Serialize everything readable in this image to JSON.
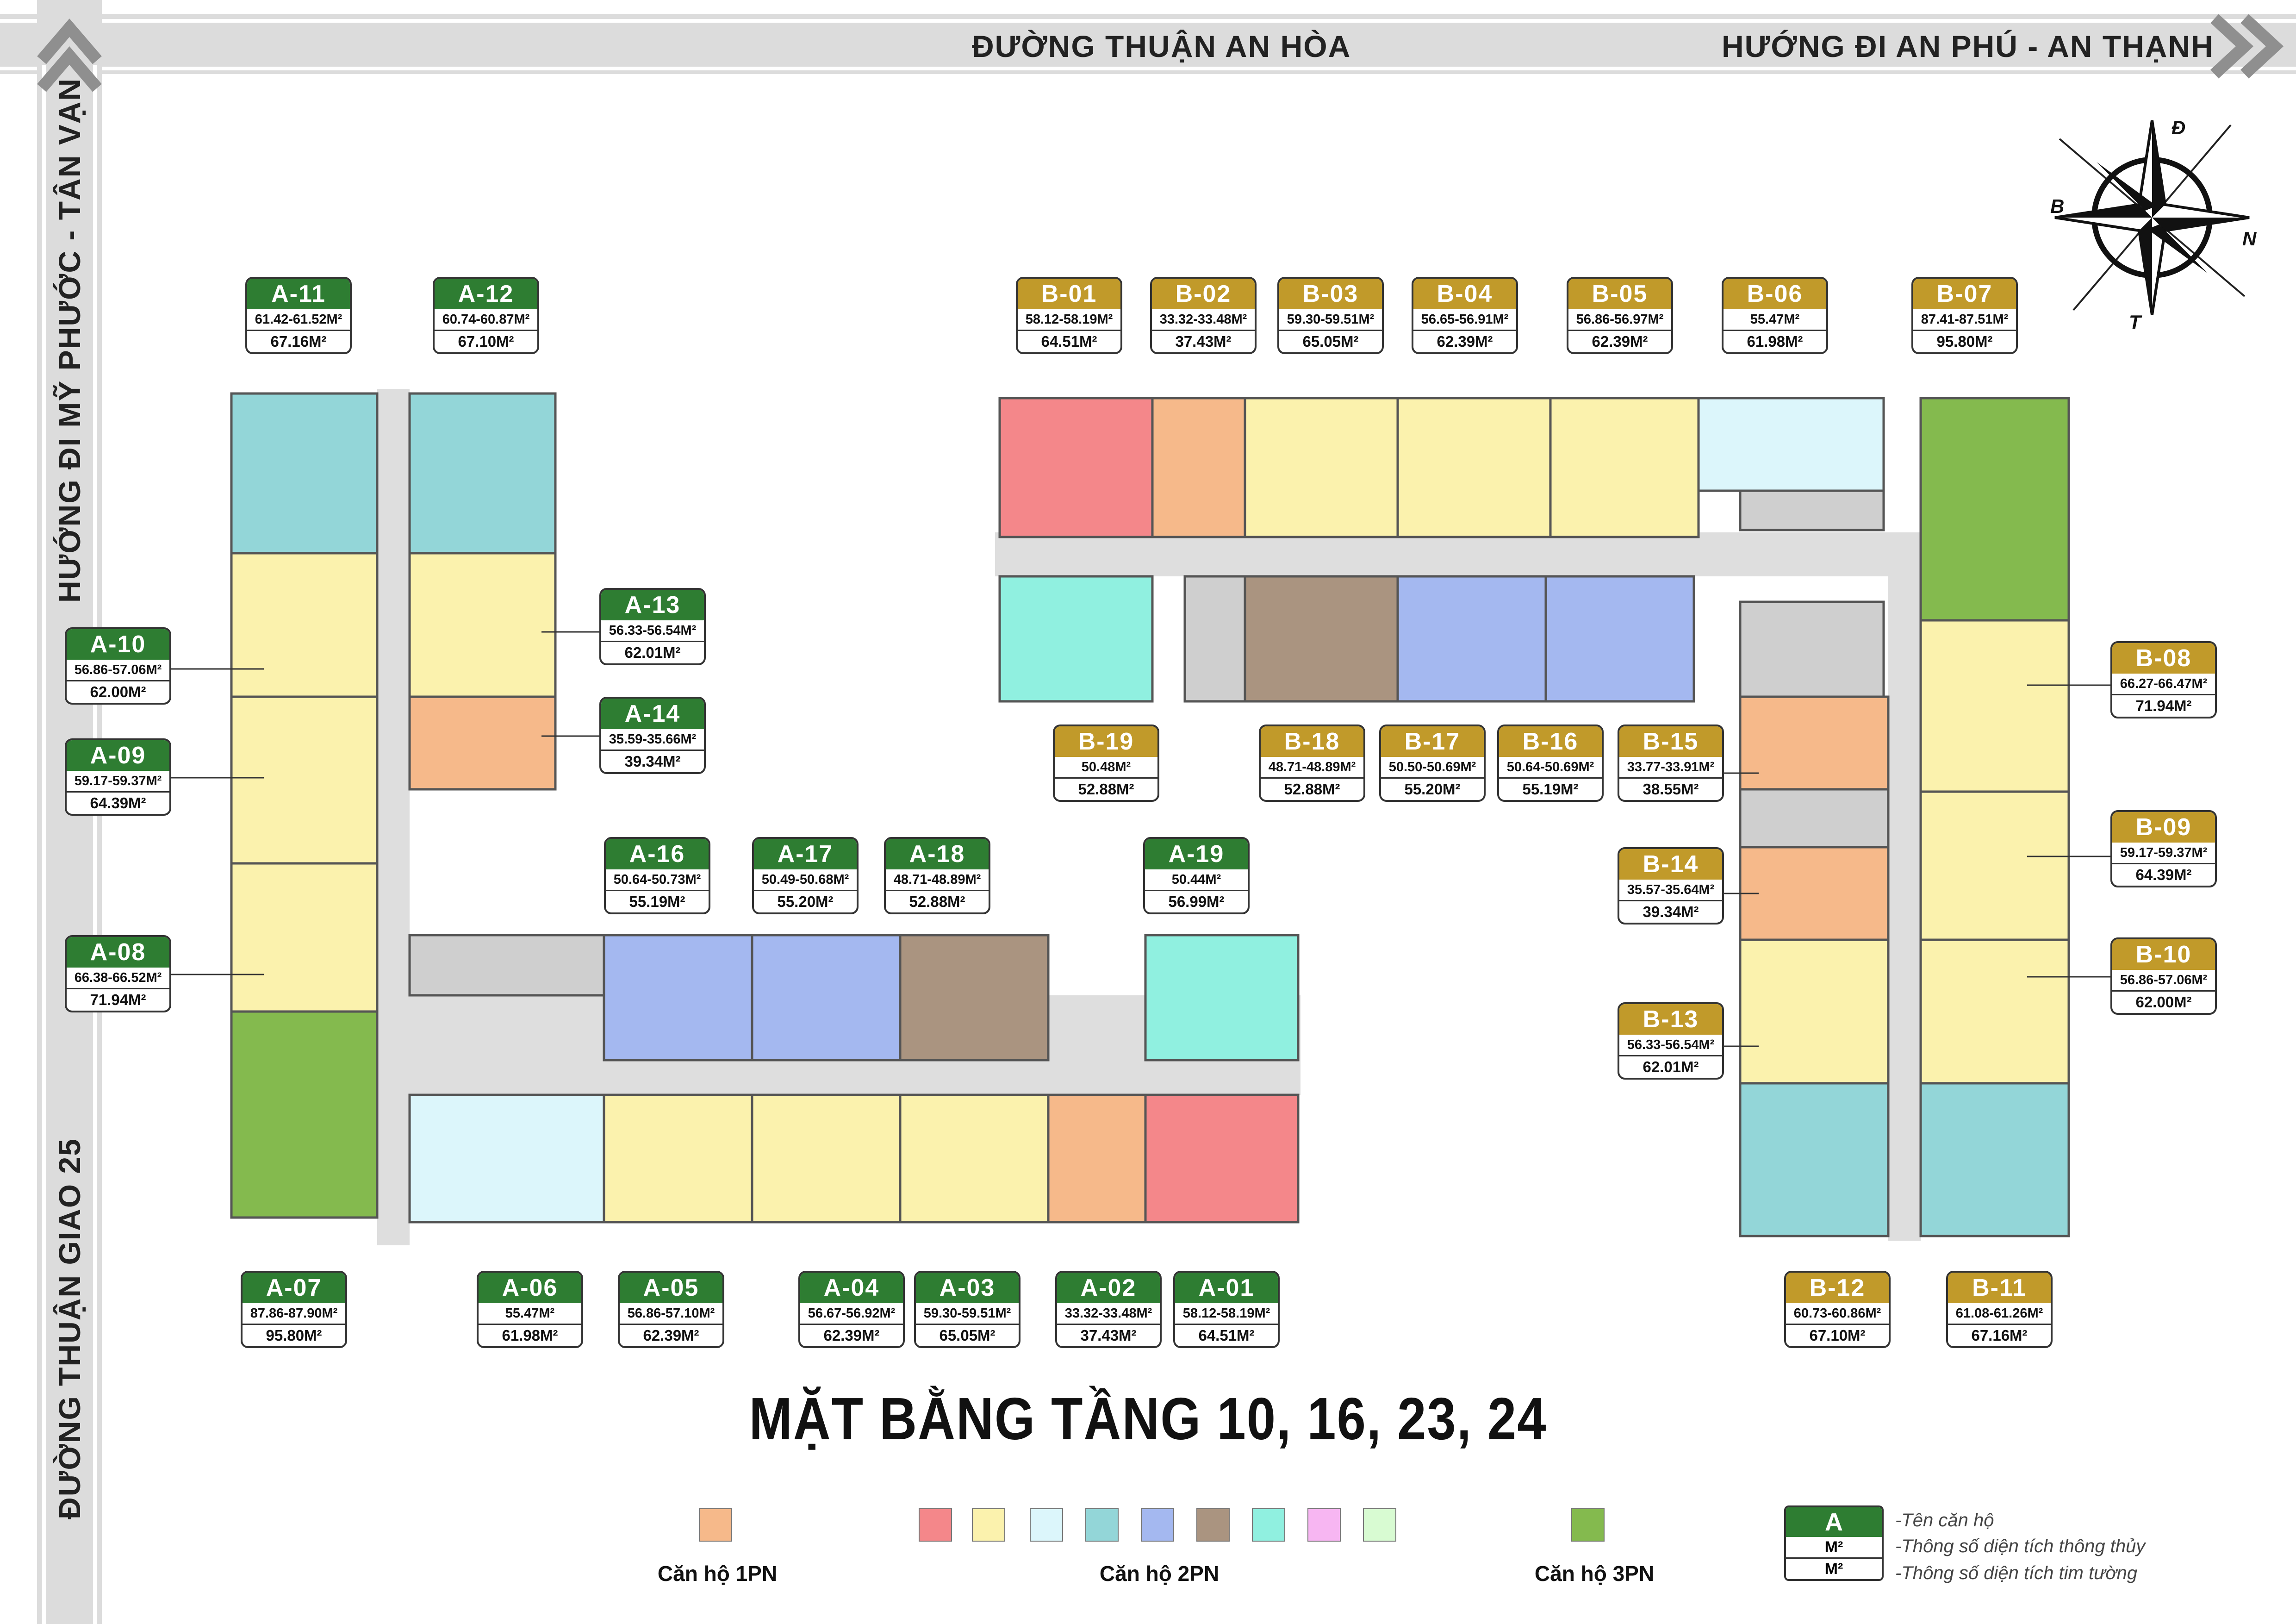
{
  "roads": {
    "top_center": "ĐƯỜNG THUẬN AN HÒA",
    "top_right": "HƯỚNG ĐI AN PHÚ - AN THẠNH",
    "left_upper": "HƯỚNG ĐI MỸ PHƯỚC - TÂN VẠN",
    "left_lower": "ĐƯỜNG THUẬN GIAO 25"
  },
  "compass": {
    "north_up": "Đ",
    "left": "B",
    "right": "N",
    "bottom": "T"
  },
  "title": "MẶT BẰNG TẦNG 10, 16, 23, 24",
  "colors": {
    "one_br": "#f6b98a",
    "red": "#f4878a",
    "yellow": "#fbf2ad",
    "lightcyan": "#dcf6fb",
    "teal": "#93d6d8",
    "blue": "#a4b8f0",
    "brown": "#aa9480",
    "aqua": "#90f0e0",
    "pink": "#f7b6f2",
    "mint": "#d8fbd2",
    "green3": "#84ba4e",
    "label_a": "#2e7d32",
    "label_b": "#c19a2a"
  },
  "legend": {
    "groups": [
      {
        "label": "Căn hộ 1PN",
        "swatches": [
          "one_br"
        ]
      },
      {
        "label": "Căn hộ 2PN",
        "swatches": [
          "red",
          "yellow",
          "lightcyan",
          "teal",
          "blue",
          "brown",
          "aqua",
          "pink",
          "mint"
        ]
      },
      {
        "label": "Căn hộ 3PN",
        "swatches": [
          "green3"
        ]
      }
    ],
    "key": {
      "name": "A",
      "line1": "M²",
      "line2": "M²",
      "desc_name": "-Tên căn hộ",
      "desc_line1": "-Thông số diện tích thông thủy",
      "desc_line2": "-Thông số diện tích tim tường"
    }
  },
  "units": [
    {
      "name": "A-01",
      "area_net": "58.12-58.19M²",
      "area_gross": "64.51M²",
      "color": "red"
    },
    {
      "name": "A-02",
      "area_net": "33.32-33.48M²",
      "area_gross": "37.43M²",
      "color": "one_br"
    },
    {
      "name": "A-03",
      "area_net": "59.30-59.51M²",
      "area_gross": "65.05M²",
      "color": "yellow"
    },
    {
      "name": "A-04",
      "area_net": "56.67-56.92M²",
      "area_gross": "62.39M²",
      "color": "yellow"
    },
    {
      "name": "A-05",
      "area_net": "56.86-57.10M²",
      "area_gross": "62.39M²",
      "color": "yellow"
    },
    {
      "name": "A-06",
      "area_net": "55.47M²",
      "area_gross": "61.98M²",
      "color": "lightcyan"
    },
    {
      "name": "A-07",
      "area_net": "87.86-87.90M²",
      "area_gross": "95.80M²",
      "color": "green3"
    },
    {
      "name": "A-08",
      "area_net": "66.38-66.52M²",
      "area_gross": "71.94M²",
      "color": "yellow"
    },
    {
      "name": "A-09",
      "area_net": "59.17-59.37M²",
      "area_gross": "64.39M²",
      "color": "yellow"
    },
    {
      "name": "A-10",
      "area_net": "56.86-57.06M²",
      "area_gross": "62.00M²",
      "color": "yellow"
    },
    {
      "name": "A-11",
      "area_net": "61.42-61.52M²",
      "area_gross": "67.16M²",
      "color": "teal"
    },
    {
      "name": "A-12",
      "area_net": "60.74-60.87M²",
      "area_gross": "67.10M²",
      "color": "teal"
    },
    {
      "name": "A-13",
      "area_net": "56.33-56.54M²",
      "area_gross": "62.01M²",
      "color": "yellow"
    },
    {
      "name": "A-14",
      "area_net": "35.59-35.66M²",
      "area_gross": "39.34M²",
      "color": "one_br"
    },
    {
      "name": "A-16",
      "area_net": "50.64-50.73M²",
      "area_gross": "55.19M²",
      "color": "blue"
    },
    {
      "name": "A-17",
      "area_net": "50.49-50.68M²",
      "area_gross": "55.20M²",
      "color": "blue"
    },
    {
      "name": "A-18",
      "area_net": "48.71-48.89M²",
      "area_gross": "52.88M²",
      "color": "brown"
    },
    {
      "name": "A-19",
      "area_net": "50.44M²",
      "area_gross": "56.99M²",
      "color": "aqua"
    },
    {
      "name": "B-01",
      "area_net": "58.12-58.19M²",
      "area_gross": "64.51M²",
      "color": "red"
    },
    {
      "name": "B-02",
      "area_net": "33.32-33.48M²",
      "area_gross": "37.43M²",
      "color": "one_br"
    },
    {
      "name": "B-03",
      "area_net": "59.30-59.51M²",
      "area_gross": "65.05M²",
      "color": "yellow"
    },
    {
      "name": "B-04",
      "area_net": "56.65-56.91M²",
      "area_gross": "62.39M²",
      "color": "yellow"
    },
    {
      "name": "B-05",
      "area_net": "56.86-56.97M²",
      "area_gross": "62.39M²",
      "color": "yellow"
    },
    {
      "name": "B-06",
      "area_net": "55.47M²",
      "area_gross": "61.98M²",
      "color": "lightcyan"
    },
    {
      "name": "B-07",
      "area_net": "87.41-87.51M²",
      "area_gross": "95.80M²",
      "color": "green3"
    },
    {
      "name": "B-08",
      "area_net": "66.27-66.47M²",
      "area_gross": "71.94M²",
      "color": "yellow"
    },
    {
      "name": "B-09",
      "area_net": "59.17-59.37M²",
      "area_gross": "64.39M²",
      "color": "yellow"
    },
    {
      "name": "B-10",
      "area_net": "56.86-57.06M²",
      "area_gross": "62.00M²",
      "color": "yellow"
    },
    {
      "name": "B-11",
      "area_net": "61.08-61.26M²",
      "area_gross": "67.16M²",
      "color": "teal"
    },
    {
      "name": "B-12",
      "area_net": "60.73-60.86M²",
      "area_gross": "67.10M²",
      "color": "teal"
    },
    {
      "name": "B-13",
      "area_net": "56.33-56.54M²",
      "area_gross": "62.01M²",
      "color": "yellow"
    },
    {
      "name": "B-14",
      "area_net": "35.57-35.64M²",
      "area_gross": "39.34M²",
      "color": "one_br"
    },
    {
      "name": "B-15",
      "area_net": "33.77-33.91M²",
      "area_gross": "38.55M²",
      "color": "one_br"
    },
    {
      "name": "B-16",
      "area_net": "50.64-50.69M²",
      "area_gross": "55.19M²",
      "color": "blue"
    },
    {
      "name": "B-17",
      "area_net": "50.50-50.69M²",
      "area_gross": "55.20M²",
      "color": "blue"
    },
    {
      "name": "B-18",
      "area_net": "48.71-48.89M²",
      "area_gross": "52.88M²",
      "color": "brown"
    },
    {
      "name": "B-19",
      "area_net": "50.48M²",
      "area_gross": "52.88M²",
      "color": "aqua"
    }
  ]
}
